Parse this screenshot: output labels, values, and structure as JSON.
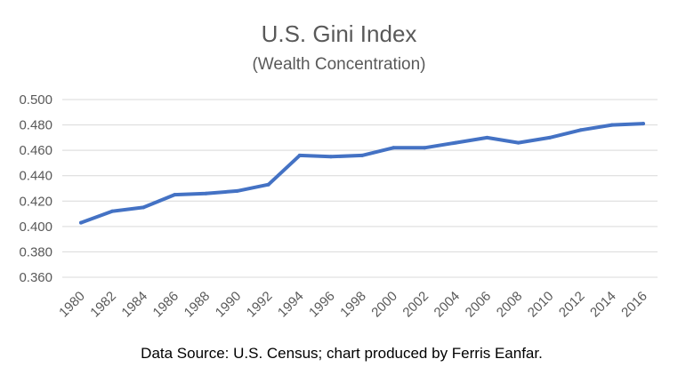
{
  "chart_data": {
    "type": "line",
    "title": "U.S. Gini Index",
    "subtitle": "(Wealth Concentration)",
    "source_note": "Data Source: U.S. Census; chart produced by Ferris Eanfar.",
    "xlabel": "",
    "ylabel": "",
    "ylim": [
      0.36,
      0.5
    ],
    "y_ticks": [
      "0.360",
      "0.380",
      "0.400",
      "0.420",
      "0.440",
      "0.460",
      "0.480",
      "0.500"
    ],
    "x_ticks": [
      "1980",
      "1982",
      "1984",
      "1986",
      "1988",
      "1990",
      "1992",
      "1994",
      "1996",
      "1998",
      "2000",
      "2002",
      "2004",
      "2006",
      "2008",
      "2010",
      "2012",
      "2014",
      "2016"
    ],
    "grid": true,
    "legend": "none",
    "line_color": "#4472c4",
    "series": [
      {
        "x": [
          1980,
          1982,
          1984,
          1986,
          1988,
          1990,
          1992,
          1994,
          1996,
          1998,
          2000,
          2002,
          2004,
          2006,
          2008,
          2010,
          2012,
          2014,
          2016
        ],
        "values": [
          0.403,
          0.412,
          0.415,
          0.425,
          0.426,
          0.428,
          0.433,
          0.456,
          0.455,
          0.456,
          0.462,
          0.462,
          0.466,
          0.47,
          0.466,
          0.47,
          0.476,
          0.48,
          0.481
        ]
      }
    ]
  }
}
